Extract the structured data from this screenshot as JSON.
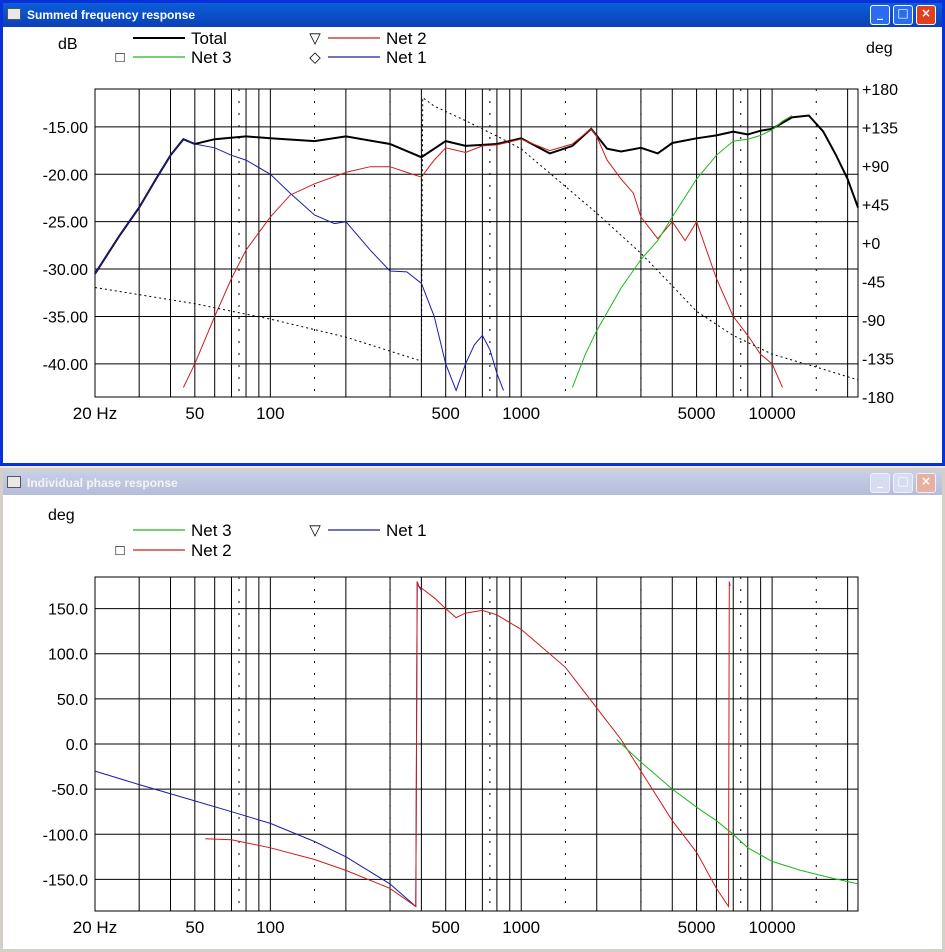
{
  "window_top": {
    "title": "Summed frequency response",
    "btn_min": "_",
    "btn_max": "□",
    "btn_close": "×"
  },
  "window_bottom": {
    "title": "Individual phase response",
    "btn_min": "_",
    "btn_max": "□",
    "btn_close": "×"
  },
  "colors": {
    "total": "#000000",
    "net1": "#1c1ca8",
    "net2": "#cc1c1c",
    "net3": "#1cb81c",
    "phase_dotted": "#000000"
  },
  "chart_data": [
    {
      "type": "line",
      "title": "Summed frequency response",
      "xscale": "log",
      "xlim": [
        20,
        22000
      ],
      "x_ticks": [
        "20 Hz",
        "50",
        "100",
        "500",
        "1000",
        "5000",
        "10000"
      ],
      "ylabel_left": "dB",
      "ylabel_right": "deg",
      "ylim_left": [
        -43.5,
        -11
      ],
      "y_ticks_left": [
        "-15.00",
        "-20.00",
        "-25.00",
        "-30.00",
        "-35.00",
        "-40.00"
      ],
      "ylim_right": [
        -180,
        180
      ],
      "y_ticks_right": [
        "+180",
        "+135",
        "+90",
        "+45",
        "+0",
        "-45",
        "-90",
        "-135",
        "-180"
      ],
      "grid": true,
      "legend": [
        {
          "name": "Total",
          "marker": ""
        },
        {
          "name": "Net 2",
          "marker": "▽"
        },
        {
          "name": "Net 3",
          "marker": "□"
        },
        {
          "name": "Net 1",
          "marker": "◇"
        }
      ],
      "series": [
        {
          "name": "Total",
          "color_key": "total",
          "x": [
            20,
            25,
            30,
            35,
            40,
            45,
            50,
            60,
            80,
            100,
            150,
            200,
            300,
            400,
            500,
            600,
            800,
            1000,
            1300,
            1600,
            1900,
            2200,
            2500,
            3000,
            3500,
            4000,
            5000,
            6000,
            7000,
            8000,
            9000,
            10000,
            12000,
            14000,
            16000,
            18000,
            20000,
            22000
          ],
          "y": [
            -30.5,
            -26.5,
            -23.5,
            -20.5,
            -18,
            -16.3,
            -16.8,
            -16.3,
            -16,
            -16.2,
            -16.5,
            -16,
            -16.8,
            -18.2,
            -16.5,
            -17,
            -16.8,
            -16.2,
            -17.8,
            -17,
            -15.2,
            -17.3,
            -17.6,
            -17.2,
            -17.8,
            -16.7,
            -16.2,
            -15.9,
            -15.5,
            -15.8,
            -15.4,
            -15.2,
            -14,
            -13.8,
            -15.5,
            -18,
            -20.5,
            -23.5
          ]
        },
        {
          "name": "Net 1",
          "color_key": "net1",
          "x": [
            20,
            25,
            30,
            35,
            40,
            45,
            50,
            60,
            70,
            80,
            100,
            120,
            150,
            180,
            200,
            250,
            300,
            350,
            400,
            450,
            500,
            550,
            600,
            650,
            700,
            750,
            800,
            850
          ],
          "y": [
            -30.5,
            -26.5,
            -23.5,
            -20.5,
            -18,
            -16.3,
            -16.8,
            -17.2,
            -18,
            -18.5,
            -20,
            -22,
            -24.3,
            -25.2,
            -25,
            -28,
            -30.2,
            -30.3,
            -31.5,
            -35,
            -40,
            -42.8,
            -40,
            -38,
            -37,
            -38.5,
            -41,
            -42.8
          ]
        },
        {
          "name": "Net 2",
          "color_key": "net2",
          "x": [
            45,
            50,
            60,
            70,
            80,
            100,
            120,
            150,
            200,
            250,
            300,
            350,
            400,
            450,
            500,
            600,
            700,
            800,
            1000,
            1300,
            1600,
            1900,
            2000,
            2200,
            2500,
            2800,
            3000,
            3500,
            4000,
            4500,
            5000,
            6000,
            7000,
            8000,
            9000,
            10000,
            11000
          ],
          "y": [
            -42.5,
            -40,
            -35,
            -31,
            -28,
            -24.5,
            -22.2,
            -21,
            -19.8,
            -19.2,
            -19.2,
            -19.8,
            -20.3,
            -18.5,
            -17.2,
            -17.7,
            -17,
            -16.9,
            -16.3,
            -17.5,
            -16.8,
            -15.2,
            -16,
            -18.5,
            -20.5,
            -22,
            -24.5,
            -26.8,
            -25,
            -27,
            -25,
            -31,
            -35,
            -37,
            -39,
            -40,
            -42.5
          ]
        },
        {
          "name": "Net 3",
          "color_key": "net3",
          "x": [
            1600,
            1800,
            2000,
            2500,
            3000,
            3500,
            4000,
            5000,
            6000,
            7000,
            8000,
            9000,
            10000,
            11000,
            12000
          ],
          "y": [
            -42.5,
            -39,
            -36.5,
            -32,
            -29,
            -27,
            -24.5,
            -20.5,
            -18,
            -16.5,
            -16.3,
            -15.9,
            -15.3,
            -14.4,
            -13.8
          ]
        },
        {
          "name": "Phase (dotted)",
          "color_key": "phase_dotted",
          "axis": "right",
          "x": [
            20,
            50,
            100,
            200,
            400,
            405,
            450,
            600,
            800,
            1000,
            2000,
            3000,
            4000,
            5000,
            7000,
            10000,
            15000,
            22000
          ],
          "y": [
            -52,
            -71,
            -89,
            -110,
            -138,
            170,
            160,
            143,
            125,
            110,
            35,
            -12,
            -50,
            -80,
            -108,
            -130,
            -145,
            -160
          ]
        }
      ]
    },
    {
      "type": "line",
      "title": "Individual phase response",
      "xscale": "log",
      "xlim": [
        20,
        22000
      ],
      "x_ticks": [
        "20 Hz",
        "50",
        "100",
        "500",
        "1000",
        "5000",
        "10000"
      ],
      "ylabel": "deg",
      "ylim": [
        -185,
        185
      ],
      "y_ticks": [
        "150.0",
        "100.0",
        "50.0",
        "0.0",
        "-50.0",
        "-100.0",
        "-150.0"
      ],
      "grid": true,
      "legend": [
        {
          "name": "Net 3",
          "marker": ""
        },
        {
          "name": "Net 1",
          "marker": "▽"
        },
        {
          "name": "Net 2",
          "marker": "□"
        }
      ],
      "series": [
        {
          "name": "Net 1",
          "color_key": "net1",
          "x": [
            20,
            30,
            50,
            70,
            100,
            150,
            200,
            300,
            380,
            385,
            390,
            400
          ],
          "y": [
            -30,
            -45,
            -63,
            -75,
            -88,
            -108,
            -125,
            -155,
            -180,
            180,
            175,
            170
          ]
        },
        {
          "name": "Net 2",
          "color_key": "net2",
          "x": [
            55,
            70,
            100,
            150,
            200,
            300,
            380,
            385,
            390,
            450,
            500,
            550,
            600,
            700,
            800,
            1000,
            1500,
            2000,
            2500,
            3000,
            4000,
            5000,
            6000,
            6700,
            6750,
            6800
          ],
          "y": [
            -105,
            -106,
            -115,
            -128,
            -140,
            -160,
            -180,
            180,
            175,
            162,
            150,
            140,
            145,
            148,
            143,
            127,
            85,
            40,
            5,
            -30,
            -85,
            -120,
            -160,
            -180,
            180,
            175
          ]
        },
        {
          "name": "Net 3",
          "color_key": "net3",
          "x": [
            2400,
            3000,
            4000,
            5000,
            6000,
            7000,
            8000,
            10000,
            13000,
            17000,
            22000
          ],
          "y": [
            5,
            -20,
            -50,
            -70,
            -85,
            -100,
            -115,
            -130,
            -140,
            -148,
            -155
          ]
        }
      ]
    }
  ]
}
